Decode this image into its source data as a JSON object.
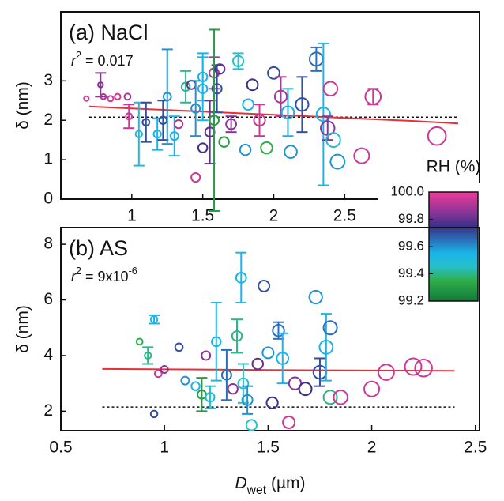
{
  "chart_data": [
    {
      "type": "scatter",
      "title": "(a) NaCl",
      "annotation": [
        {
          "text": "r",
          "style": "italic"
        },
        {
          "text": "2",
          "style": "sup"
        },
        {
          "text": " = 0.017"
        }
      ],
      "y_label": "δ (nm)",
      "xlim": [
        0.5,
        3.45
      ],
      "ylim": [
        0,
        4.75
      ],
      "xticks": [
        1,
        1.5,
        2,
        2.5
      ],
      "yticks": [
        0,
        1,
        2,
        3
      ],
      "x": [
        0.68,
        0.78,
        0.8,
        0.85,
        0.9,
        0.97,
        0.98,
        1.05,
        1.1,
        1.18,
        1.22,
        1.25,
        1.3,
        1.33,
        1.38,
        1.42,
        1.45,
        1.5,
        1.5,
        1.5,
        1.45,
        1.55,
        1.58,
        1.6,
        1.58,
        1.62,
        1.65,
        1.7,
        1.75,
        1.8,
        1.82,
        1.85,
        1.9,
        1.95,
        2.0,
        2.05,
        2.1,
        2.12,
        2.2,
        2.3,
        2.35,
        2.38,
        2.4,
        2.45,
        2.62,
        2.7,
        3.15,
        2.42
      ],
      "values": [
        2.55,
        2.9,
        2.6,
        2.55,
        2.6,
        2.6,
        2.1,
        1.65,
        1.95,
        1.65,
        2.0,
        2.6,
        1.6,
        1.9,
        2.85,
        2.9,
        2.3,
        3.1,
        2.8,
        1.3,
        0.55,
        1.7,
        3.2,
        2.8,
        2.0,
        3.3,
        1.45,
        1.9,
        3.5,
        1.25,
        2.4,
        2.9,
        2.0,
        1.3,
        3.2,
        2.6,
        2.2,
        1.2,
        2.4,
        3.55,
        2.15,
        1.8,
        2.8,
        0.95,
        1.1,
        2.6,
        1.6,
        1.5
      ],
      "rh": [
        99.95,
        99.85,
        99.9,
        99.95,
        99.95,
        99.9,
        99.95,
        99.5,
        99.7,
        99.55,
        99.7,
        99.6,
        99.55,
        99.9,
        99.4,
        99.8,
        99.6,
        99.55,
        99.55,
        99.75,
        99.95,
        99.8,
        99.9,
        99.7,
        99.3,
        99.8,
        99.3,
        99.85,
        99.45,
        99.6,
        99.55,
        99.75,
        99.95,
        99.35,
        99.7,
        99.9,
        99.55,
        99.6,
        99.7,
        99.65,
        99.55,
        99.85,
        99.95,
        99.6,
        99.95,
        99.95,
        99.95,
        99.5
      ],
      "errors": [
        null,
        0.3,
        null,
        null,
        null,
        null,
        0.3,
        0.8,
        0.5,
        0.4,
        0.5,
        1.2,
        0.5,
        null,
        0.4,
        null,
        0.7,
        0.6,
        0.8,
        null,
        null,
        0.8,
        0.4,
        0.6,
        2.3,
        null,
        null,
        0.2,
        0.2,
        null,
        null,
        null,
        0.4,
        null,
        null,
        0.5,
        0.6,
        null,
        0.7,
        0.3,
        1.8,
        0.3,
        null,
        null,
        null,
        0.2,
        null,
        null
      ],
      "fit": {
        "color": "#e8303a",
        "x": [
          0.7,
          1.0,
          1.5,
          2.0,
          2.5,
          3.0,
          3.3
        ],
        "values": [
          2.35,
          2.3,
          2.22,
          2.14,
          2.06,
          1.98,
          1.92
        ]
      },
      "reference": {
        "x": [
          0.7,
          3.3
        ],
        "values": [
          2.08,
          2.08
        ]
      },
      "colorbar": {
        "label": "RH (%)",
        "lim": [
          99.2,
          100
        ],
        "ticks": [
          {
            "value": 100,
            "label": "100.0"
          },
          99.8,
          99.6,
          99.4,
          99.2
        ],
        "stops": [
          99.2,
          99.35,
          99.45,
          99.55,
          99.65,
          99.75,
          99.85,
          100
        ],
        "colors": [
          "#127a3a",
          "#2fae4a",
          "#27c0c8",
          "#1ab4ea",
          "#2a6fb8",
          "#3c2f86",
          "#8a3596",
          "#ee3a98"
        ]
      }
    },
    {
      "type": "scatter",
      "title": "(b) AS",
      "annotation": [
        {
          "text": "r",
          "style": "italic"
        },
        {
          "text": "2",
          "style": "sup"
        },
        {
          "text": " = 9x10"
        },
        {
          "text": "-6",
          "style": "sup"
        }
      ],
      "y_label": "δ (nm)",
      "x_label": [
        {
          "text": "D",
          "style": "italic"
        },
        {
          "text": "wet",
          "style": "sub"
        },
        {
          "text": " (µm)"
        }
      ],
      "xlim": [
        0.5,
        2.52
      ],
      "ylim": [
        1.3,
        8.6
      ],
      "xticks": [
        0.5,
        1,
        1.5,
        2,
        2.5
      ],
      "yticks": [
        2,
        4,
        6,
        8
      ],
      "x": [
        0.88,
        0.92,
        0.95,
        0.95,
        0.97,
        1.0,
        1.07,
        1.1,
        1.15,
        1.18,
        1.2,
        1.22,
        1.25,
        1.3,
        1.33,
        1.35,
        1.37,
        1.38,
        1.4,
        1.42,
        1.45,
        1.48,
        1.5,
        1.52,
        1.55,
        1.57,
        1.6,
        1.63,
        1.68,
        1.73,
        1.75,
        1.78,
        1.8,
        1.8,
        1.85,
        2.0,
        2.07,
        2.2,
        2.25
      ],
      "values": [
        4.5,
        4.0,
        5.3,
        1.9,
        3.35,
        3.5,
        4.3,
        3.1,
        2.9,
        2.6,
        4.0,
        2.5,
        4.5,
        3.3,
        2.8,
        4.7,
        6.8,
        3.0,
        2.4,
        1.5,
        3.7,
        6.5,
        4.1,
        2.3,
        4.9,
        3.9,
        1.6,
        3.0,
        2.8,
        6.1,
        3.4,
        4.3,
        2.5,
        5.0,
        2.5,
        2.8,
        3.4,
        3.6,
        3.55
      ],
      "rh": [
        99.35,
        99.4,
        99.55,
        99.7,
        99.95,
        99.85,
        99.7,
        99.6,
        99.55,
        99.3,
        99.85,
        99.5,
        99.55,
        99.65,
        99.85,
        99.4,
        99.55,
        99.45,
        99.6,
        99.45,
        99.8,
        99.7,
        99.6,
        99.75,
        99.65,
        99.55,
        99.95,
        99.85,
        99.75,
        99.6,
        99.7,
        99.55,
        99.4,
        99.65,
        99.95,
        99.95,
        99.95,
        99.95,
        99.95
      ],
      "errors": [
        null,
        0.3,
        0.15,
        null,
        null,
        null,
        null,
        null,
        null,
        0.6,
        null,
        0.4,
        1.4,
        0.9,
        null,
        0.6,
        0.9,
        0.7,
        0.5,
        null,
        null,
        null,
        null,
        null,
        0.3,
        0.9,
        null,
        null,
        null,
        null,
        0.5,
        1.2,
        null,
        null,
        null,
        null,
        null,
        null,
        null
      ],
      "fit": {
        "color": "#e8303a",
        "x": [
          0.7,
          1.5,
          2.4
        ],
        "values": [
          3.52,
          3.48,
          3.45
        ]
      },
      "reference": {
        "x": [
          0.7,
          2.4
        ],
        "values": [
          2.15,
          2.15
        ]
      }
    }
  ]
}
